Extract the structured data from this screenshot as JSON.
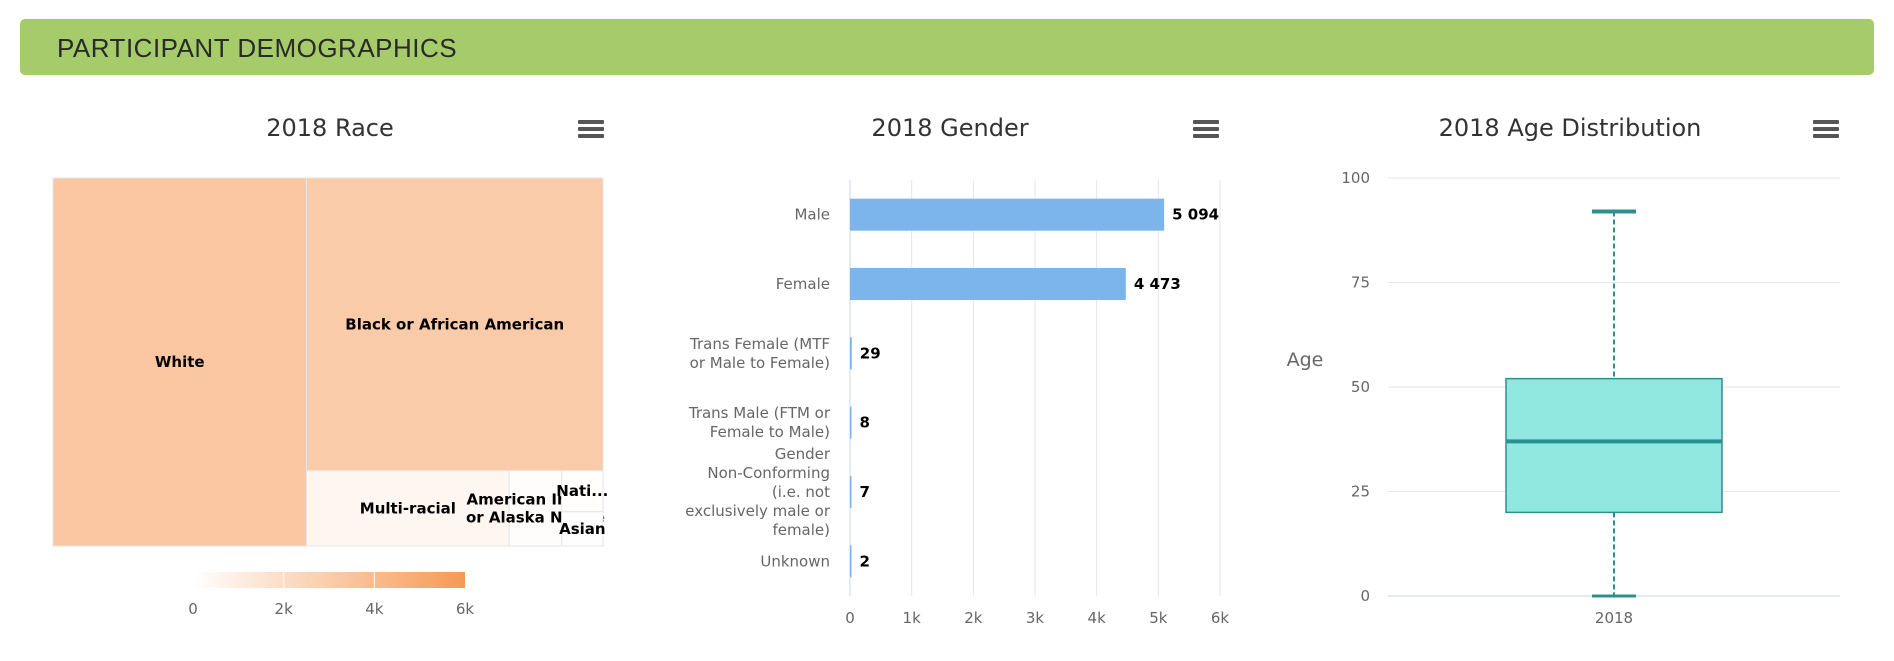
{
  "header": {
    "title": "PARTICIPANT DEMOGRAPHICS",
    "color": "#a6cb6a"
  },
  "chart_data": [
    {
      "type": "treemap",
      "title": "2018 Race",
      "items": [
        {
          "name": "White",
          "value": 3300
        },
        {
          "name": "Black or African American",
          "value": 3070
        },
        {
          "name": "Multi-racial",
          "value": 540
        },
        {
          "name": "American Indian or Alaska Native",
          "value": 140
        },
        {
          "name": "Nati...",
          "value": 60
        },
        {
          "name": "Asian",
          "value": 50
        }
      ],
      "colorAxis": {
        "min": 0,
        "max": 6000,
        "ticks": [
          0,
          2000,
          4000,
          6000
        ],
        "tick_labels": [
          "0",
          "2k",
          "4k",
          "6k"
        ],
        "min_color": "#ffffff",
        "max_color": "#f59a55"
      }
    },
    {
      "type": "bar",
      "orientation": "horizontal",
      "title": "2018 Gender",
      "categories": [
        "Male",
        "Female",
        "Trans Female (MTF or Male to Female)",
        "Trans Male (FTM or Female to Male)",
        "Gender Non-Conforming (i.e. not exclusively male or female)",
        "Unknown"
      ],
      "values": [
        5094,
        4473,
        29,
        8,
        7,
        2
      ],
      "data_labels": [
        "5 094",
        "4 473",
        "29",
        "8",
        "7",
        "2"
      ],
      "xlim": [
        0,
        6000
      ],
      "xticks": [
        0,
        1000,
        2000,
        3000,
        4000,
        5000,
        6000
      ],
      "xtick_labels": [
        "0",
        "1k",
        "2k",
        "3k",
        "4k",
        "5k",
        "6k"
      ],
      "color": "#7cb5ec"
    },
    {
      "type": "boxplot",
      "title": "2018 Age Distribution",
      "categories": [
        "2018"
      ],
      "ylabel": "Age",
      "ylim": [
        0,
        100
      ],
      "yticks": [
        0,
        25,
        50,
        75,
        100
      ],
      "box": {
        "min": 0,
        "q1": 20,
        "median": 37,
        "q3": 52,
        "max": 92
      },
      "fill": "#91e8e1",
      "stroke": "#2b908f"
    }
  ]
}
